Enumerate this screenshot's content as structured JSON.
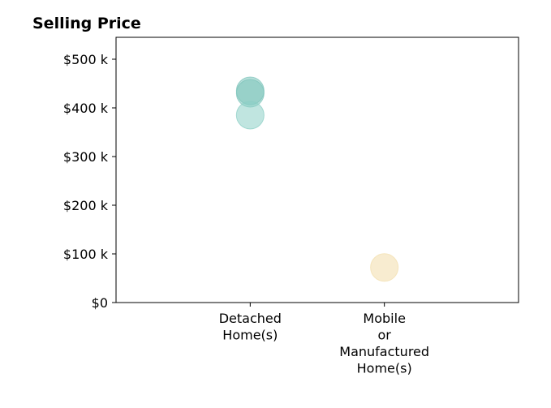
{
  "chart_data": {
    "type": "scatter",
    "title": "Selling Price",
    "xlabel": "",
    "ylabel": "",
    "categories": [
      [
        "Detached",
        "Home(s)"
      ],
      [
        "Mobile",
        "or",
        "Manufactured",
        "Home(s)"
      ]
    ],
    "xlim": [
      0,
      3
    ],
    "ylim": [
      0,
      545000
    ],
    "y_ticks": [
      {
        "value": 0,
        "label": "$0"
      },
      {
        "value": 100000,
        "label": "$100 k"
      },
      {
        "value": 200000,
        "label": "$200 k"
      },
      {
        "value": 300000,
        "label": "$300 k"
      },
      {
        "value": 400000,
        "label": "$400 k"
      },
      {
        "value": 500000,
        "label": "$500 k"
      }
    ],
    "grid": false,
    "points": [
      {
        "category_index": 0,
        "y": 435000,
        "color": "#7ec4bb",
        "alpha": 0.55
      },
      {
        "category_index": 0,
        "y": 430000,
        "color": "#7ec4bb",
        "alpha": 0.55
      },
      {
        "category_index": 0,
        "y": 385000,
        "color": "#8ccfc6",
        "alpha": 0.55
      },
      {
        "category_index": 1,
        "y": 72000,
        "color": "#f3e0b0",
        "alpha": 0.6
      }
    ]
  }
}
